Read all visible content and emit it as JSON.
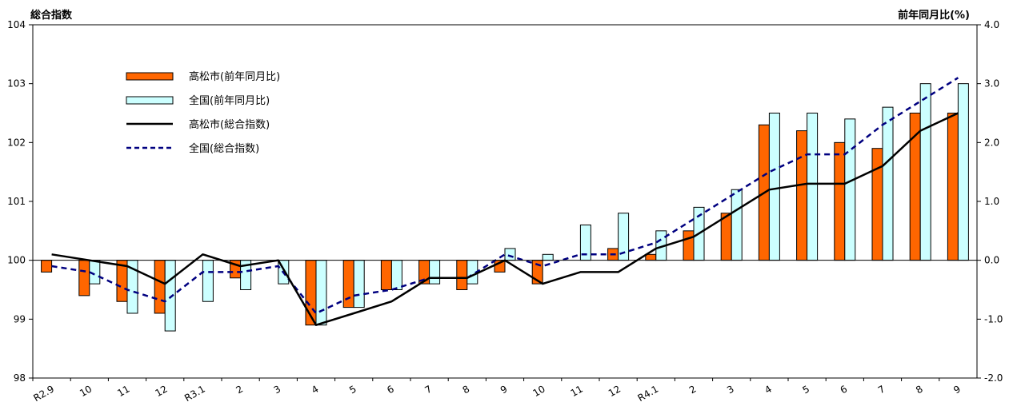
{
  "chart_data": {
    "type": "bar",
    "left_axis_title": "総合指数",
    "right_axis_title": "前年同月比(%)",
    "left_axis": {
      "min": 98,
      "max": 104,
      "ticks": [
        "98",
        "99",
        "100",
        "101",
        "102",
        "103",
        "104"
      ]
    },
    "right_axis": {
      "min": -2.0,
      "max": 4.0,
      "ticks": [
        "-2.0",
        "-1.0",
        "0.0",
        "1.0",
        "2.0",
        "3.0",
        "4.0"
      ]
    },
    "categories": [
      "R2.9",
      "10",
      "11",
      "12",
      "R3.1",
      "2",
      "3",
      "4",
      "5",
      "6",
      "7",
      "8",
      "9",
      "10",
      "11",
      "12",
      "R4.1",
      "2",
      "3",
      "4",
      "5",
      "6",
      "7",
      "8",
      "9"
    ],
    "bar_series": [
      {
        "name": "高松市(前年同月比)",
        "color": "#FF6600",
        "axis": "right",
        "values": [
          -0.2,
          -0.6,
          -0.7,
          -0.9,
          null,
          -0.3,
          null,
          -1.1,
          -0.8,
          -0.5,
          -0.4,
          -0.5,
          -0.2,
          -0.4,
          null,
          0.2,
          0.1,
          0.5,
          0.8,
          2.3,
          2.2,
          2.0,
          1.9,
          2.5,
          2.5
        ]
      },
      {
        "name": "全国(前年同月比)",
        "color": "#CCFFFF",
        "axis": "right",
        "values": [
          null,
          -0.4,
          -0.9,
          -1.2,
          -0.7,
          -0.5,
          -0.4,
          -1.1,
          -0.8,
          -0.5,
          -0.4,
          -0.4,
          0.2,
          0.1,
          0.6,
          0.8,
          0.5,
          0.9,
          1.2,
          2.5,
          2.5,
          2.4,
          2.6,
          3.0,
          3.0
        ]
      }
    ],
    "line_series": [
      {
        "name": "高松市(総合指数)",
        "color": "#000000",
        "style": "solid",
        "axis": "left",
        "values": [
          100.1,
          100.0,
          99.9,
          99.6,
          100.1,
          99.9,
          100.0,
          98.9,
          99.1,
          99.3,
          99.7,
          99.7,
          100.0,
          99.6,
          99.8,
          99.8,
          100.2,
          100.4,
          100.8,
          101.2,
          101.3,
          101.3,
          101.6,
          102.2,
          102.5
        ]
      },
      {
        "name": "全国(総合指数)",
        "color": "#000080",
        "style": "dashed",
        "axis": "left",
        "values": [
          99.9,
          99.8,
          99.5,
          99.3,
          99.8,
          99.8,
          99.9,
          99.1,
          99.4,
          99.5,
          99.7,
          99.7,
          100.1,
          99.9,
          100.1,
          100.1,
          100.3,
          100.7,
          101.1,
          101.5,
          101.8,
          101.8,
          102.3,
          102.7,
          103.1
        ]
      }
    ],
    "legend_position": "top-left"
  }
}
